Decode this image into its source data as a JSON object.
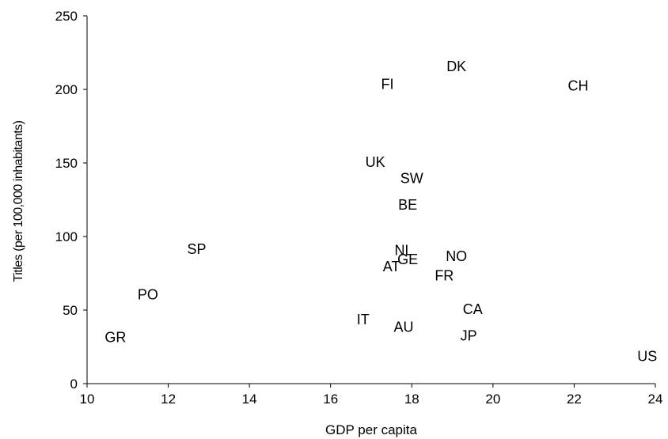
{
  "chart_data": {
    "type": "scatter",
    "title": "",
    "xlabel": "GDP per capita",
    "ylabel": "Titles (per 100,000 inhabitants)",
    "xlim": [
      10,
      24
    ],
    "ylim": [
      0,
      250
    ],
    "xticks": [
      10,
      12,
      14,
      16,
      18,
      20,
      22,
      24
    ],
    "yticks": [
      0,
      50,
      100,
      150,
      200,
      250
    ],
    "grid": false,
    "legend": "none",
    "points": [
      {
        "label": "GR",
        "x": 10.7,
        "y": 32
      },
      {
        "label": "PO",
        "x": 11.5,
        "y": 61
      },
      {
        "label": "SP",
        "x": 12.7,
        "y": 92
      },
      {
        "label": "IT",
        "x": 16.8,
        "y": 44
      },
      {
        "label": "UK",
        "x": 17.1,
        "y": 151
      },
      {
        "label": "FI",
        "x": 17.4,
        "y": 204
      },
      {
        "label": "AT",
        "x": 17.5,
        "y": 80
      },
      {
        "label": "AU",
        "x": 17.8,
        "y": 39
      },
      {
        "label": "NL",
        "x": 17.8,
        "y": 91
      },
      {
        "label": "GE",
        "x": 17.9,
        "y": 85
      },
      {
        "label": "BE",
        "x": 17.9,
        "y": 122
      },
      {
        "label": "SW",
        "x": 18.0,
        "y": 140
      },
      {
        "label": "FR",
        "x": 18.8,
        "y": 74
      },
      {
        "label": "DK",
        "x": 19.1,
        "y": 216
      },
      {
        "label": "NO",
        "x": 19.1,
        "y": 87
      },
      {
        "label": "CA",
        "x": 19.5,
        "y": 51
      },
      {
        "label": "JP",
        "x": 19.4,
        "y": 33
      },
      {
        "label": "CH",
        "x": 22.1,
        "y": 203
      },
      {
        "label": "US",
        "x": 23.8,
        "y": 19
      }
    ]
  }
}
